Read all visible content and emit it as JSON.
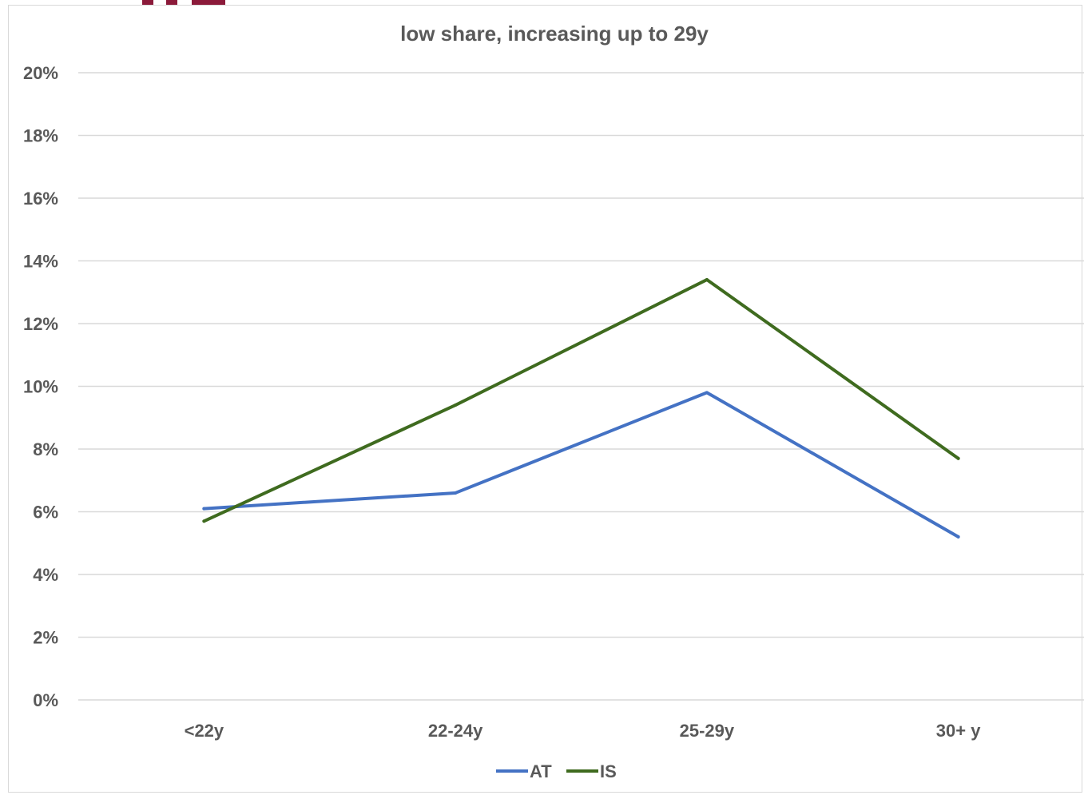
{
  "chart_data": {
    "type": "line",
    "title": "low share, increasing up to 29y",
    "xlabel": "",
    "ylabel": "",
    "categories": [
      "<22y",
      "22-24y",
      "25-29y",
      "30+ y"
    ],
    "ylim": [
      0,
      20
    ],
    "y_ticks": [
      "0%",
      "2%",
      "4%",
      "6%",
      "8%",
      "10%",
      "12%",
      "14%",
      "16%",
      "18%",
      "20%"
    ],
    "grid": true,
    "legend_position": "bottom",
    "series": [
      {
        "name": "AT",
        "color": "#4472c4",
        "values": [
          6.1,
          6.6,
          9.8,
          5.2
        ]
      },
      {
        "name": "IS",
        "color": "#3f6b1f",
        "values": [
          5.7,
          9.4,
          13.4,
          7.7
        ]
      }
    ]
  }
}
